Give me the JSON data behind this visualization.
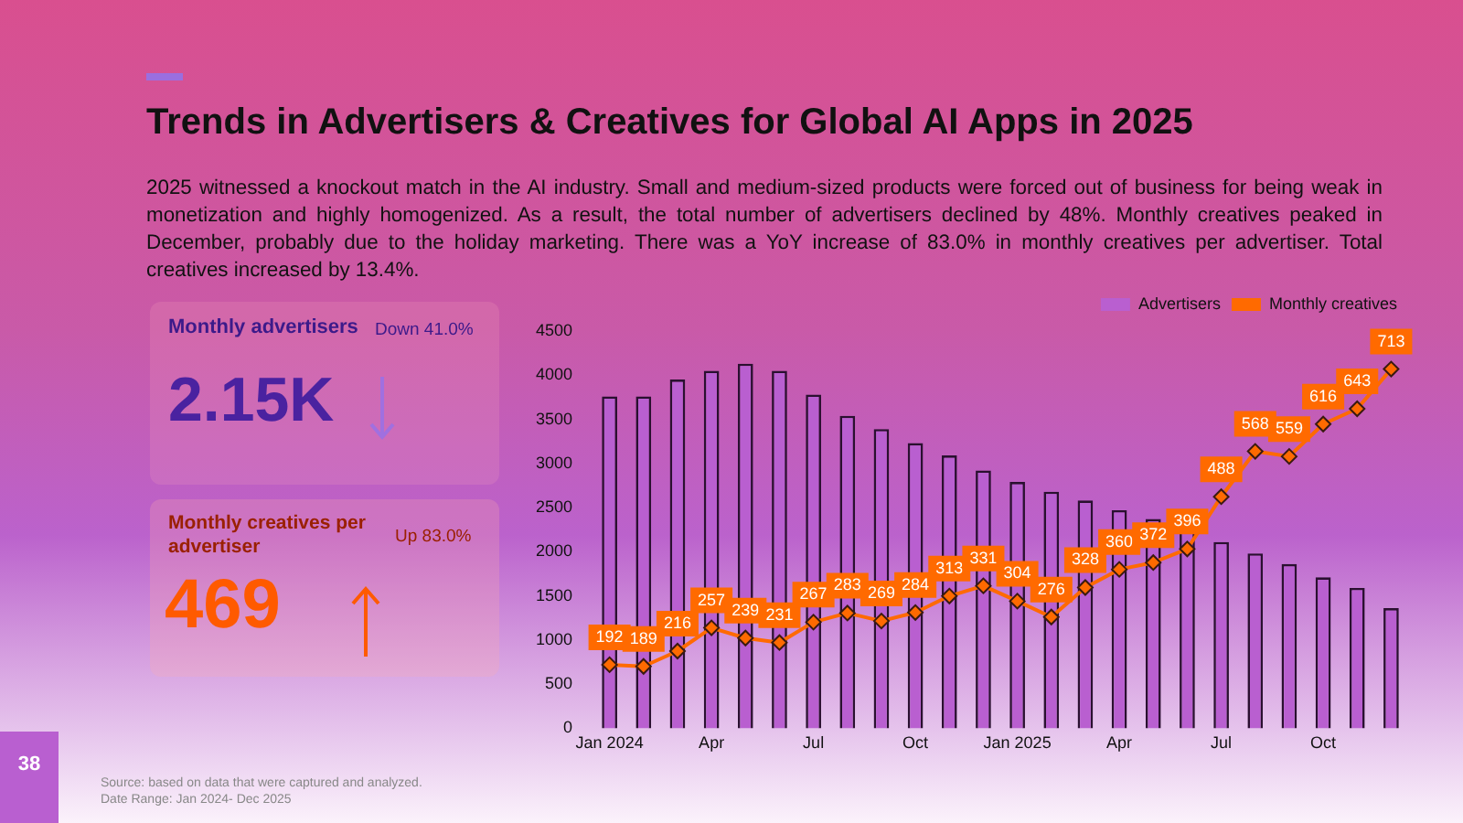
{
  "chart_data": {
    "type": "bar",
    "title": "Trends in Advertisers &  Creatives for Global AI Apps in 2025",
    "subtitle": "2025 witnessed a knockout match in the AI industry. Small and medium-sized products were forced out of business for being weak in monetization and highly homogenized. As a result, the total number of advertisers declined by 48%. Monthly creatives peaked in December, probably due to the holiday marketing. There was a YoY increase of 83.0% in monthly creatives per advertiser. Total creatives increased by 13.4%.",
    "annotations": [
      "Monthly advertisers",
      "Down 41.0%",
      "2.15K",
      "Monthly creatives per advertiser",
      "Up 83.0%",
      "469",
      "38",
      "Source: based on data that were captured and analyzed.",
      "Date Range: Jan 2024- Dec 2025"
    ],
    "categories": [
      "Jan 2024",
      null,
      null,
      "Apr",
      null,
      null,
      "Jul",
      null,
      null,
      "Oct",
      null,
      null,
      "Jan 2025",
      null,
      null,
      "Apr",
      null,
      null,
      "Jul",
      null,
      null,
      "Oct",
      null,
      null
    ],
    "series": [
      {
        "name": "Advertisers",
        "color": "#b95fd0",
        "values": [
          3760,
          3760,
          3950,
          4050,
          4130,
          4050,
          3780,
          3540,
          3390,
          3230,
          3090,
          2920,
          2790,
          2680,
          2580,
          2470,
          2370,
          2240,
          2110,
          1980,
          1860,
          1710,
          1590,
          1360
        ]
      },
      {
        "name": "Monthly creatives",
        "type": "line",
        "axis": "y2",
        "color": "#ff6a00",
        "marker": "diamond",
        "values": [
          192,
          189,
          216,
          257,
          239,
          231,
          267,
          283,
          269,
          284,
          313,
          331,
          304,
          276,
          328,
          360,
          372,
          396,
          488,
          568,
          559,
          616,
          643,
          713
        ],
        "value_labels": [
          "192",
          "189",
          "216",
          "257",
          "239",
          "231",
          "267",
          "283",
          "269",
          "284",
          "313",
          "331",
          "304",
          "276",
          "328",
          "360",
          "372",
          "396",
          "488",
          "568",
          "559",
          "616",
          "643",
          "713"
        ]
      }
    ],
    "ylim": [
      0,
      4500
    ],
    "yticks": [
      0,
      500,
      1000,
      1500,
      2000,
      2500,
      3000,
      3500,
      4000,
      4500
    ],
    "y2lim": [
      80,
      780
    ],
    "tick_labels": "xy",
    "legend": "top right",
    "grid": false
  }
}
